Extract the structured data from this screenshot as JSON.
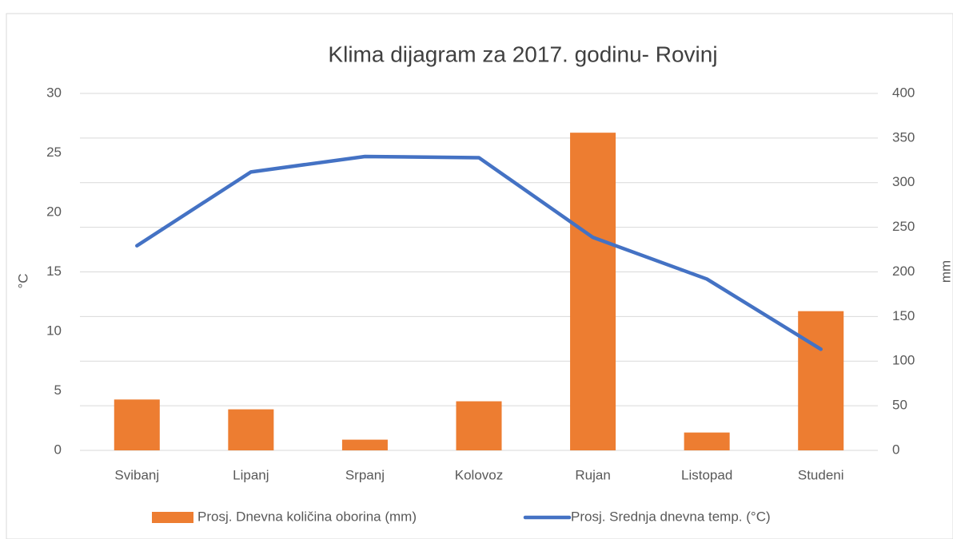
{
  "chart_data": {
    "type": "combo",
    "title": "Klima dijagram za 2017. godinu- Rovinj",
    "y_label": "°C",
    "y2_label": "mm",
    "categories": [
      "Svibanj",
      "Lipanj",
      "Srpanj",
      "Kolovoz",
      "Rujan",
      "Listopad",
      "Studeni"
    ],
    "series": [
      {
        "name": "Prosj. Dnevna količina oborina (mm)",
        "type": "bar",
        "axis": "y2",
        "color": "#ed7d31",
        "values": [
          57,
          46,
          12,
          55,
          356,
          20,
          156
        ]
      },
      {
        "name": "Prosj. Srednja dnevna temp. (°C)",
        "type": "line",
        "axis": "y",
        "color": "#4472c4",
        "values": [
          17.2,
          23.4,
          24.7,
          24.6,
          17.9,
          14.4,
          8.5
        ]
      }
    ],
    "ylim": [
      0,
      30
    ],
    "yticks": [
      0,
      5,
      10,
      15,
      20,
      25,
      30
    ],
    "y2lim": [
      0,
      400
    ],
    "y2ticks": [
      0,
      50,
      100,
      150,
      200,
      250,
      300,
      350,
      400
    ],
    "grid": true,
    "legend": "bottom"
  }
}
